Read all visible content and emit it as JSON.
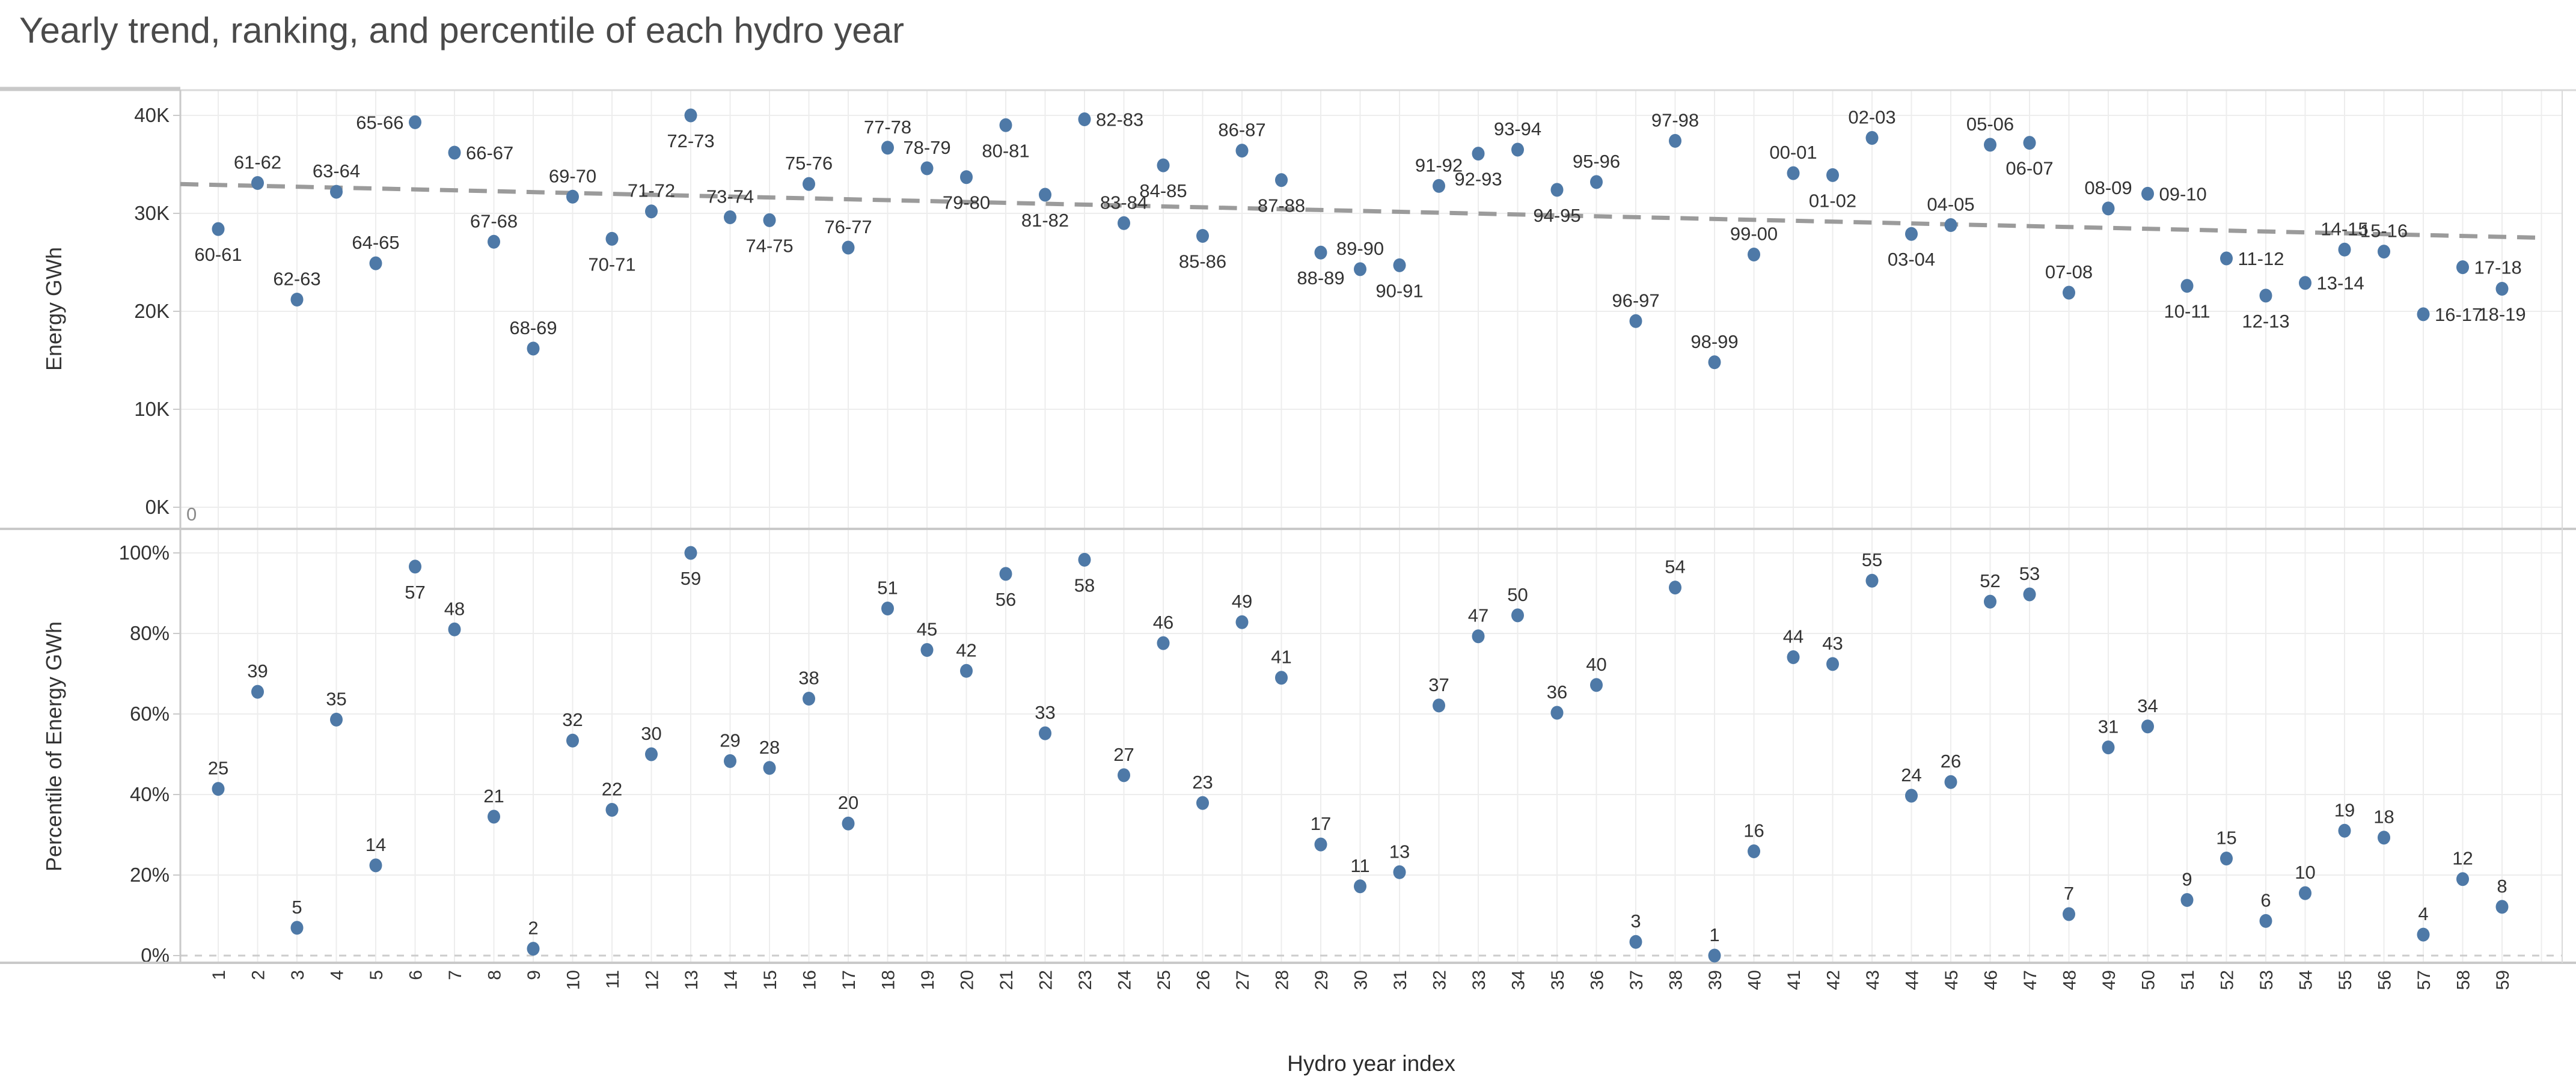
{
  "title": "Yearly trend, ranking, and percentile of each hydro year",
  "xlabel": "Hydro year index",
  "annotations": {
    "origin_zero": "0"
  },
  "colors": {
    "point": "#4e79a7",
    "trend": "#9b9b9b",
    "grid": "#ededed",
    "axis_line": "#c9c9c9",
    "zero_dash": "#cccccc",
    "mark_label": "#333333",
    "title": "#4a4a4a"
  },
  "chart_data": [
    {
      "type": "scatter",
      "panel": "top",
      "ylabel": "Energy GWh",
      "ylim": [
        0,
        42000
      ],
      "yticks": [
        "0K",
        "10K",
        "20K",
        "30K",
        "40K"
      ],
      "ytick_values": [
        0,
        10000,
        20000,
        30000,
        40000
      ],
      "grid": true,
      "x": [
        1,
        2,
        3,
        4,
        5,
        6,
        7,
        8,
        9,
        10,
        11,
        12,
        13,
        14,
        15,
        16,
        17,
        18,
        19,
        20,
        21,
        22,
        23,
        24,
        25,
        26,
        27,
        28,
        29,
        30,
        31,
        32,
        33,
        34,
        35,
        36,
        37,
        38,
        39,
        40,
        41,
        42,
        43,
        44,
        45,
        46,
        47,
        48,
        49,
        50,
        51,
        52,
        53,
        54,
        55,
        56,
        57,
        58,
        59
      ],
      "labels": [
        "60-61",
        "61-62",
        "62-63",
        "63-64",
        "64-65",
        "65-66",
        "66-67",
        "67-68",
        "68-69",
        "69-70",
        "70-71",
        "71-72",
        "72-73",
        "73-74",
        "74-75",
        "75-76",
        "76-77",
        "77-78",
        "78-79",
        "79-80",
        "80-81",
        "81-82",
        "82-83",
        "83-84",
        "84-85",
        "85-86",
        "86-87",
        "87-88",
        "88-89",
        "89-90",
        "90-91",
        "91-92",
        "92-93",
        "93-94",
        "94-95",
        "95-96",
        "96-97",
        "97-98",
        "98-99",
        "99-00",
        "00-01",
        "01-02",
        "02-03",
        "03-04",
        "04-05",
        "05-06",
        "06-07",
        "07-08",
        "08-09",
        "09-10",
        "10-11",
        "11-12",
        "12-13",
        "13-14",
        "14-15",
        "15-16",
        "16-17",
        "17-18",
        "18-19"
      ],
      "values": [
        28400,
        33100,
        21200,
        32200,
        24900,
        39300,
        36200,
        27100,
        16200,
        31700,
        27400,
        30200,
        40000,
        29600,
        29300,
        33000,
        26500,
        36700,
        34600,
        33700,
        39000,
        31900,
        39600,
        29000,
        34900,
        27700,
        36400,
        33400,
        26000,
        24300,
        24700,
        32800,
        36100,
        36500,
        32400,
        33200,
        19000,
        37400,
        14800,
        25800,
        34100,
        33900,
        37700,
        27900,
        28800,
        37000,
        37200,
        21900,
        30500,
        32000,
        22600,
        25400,
        21600,
        22900,
        26300,
        26100,
        19700,
        24500,
        22300
      ],
      "label_side": [
        "below",
        "above",
        "above",
        "above",
        "above",
        "left",
        "right",
        "above",
        "above",
        "above",
        "below",
        "above",
        "below",
        "above",
        "below",
        "above",
        "above",
        "above",
        "above",
        "below",
        "below",
        "below",
        "right",
        "above",
        "below",
        "below",
        "above",
        "below",
        "below",
        "above",
        "below",
        "above",
        "below",
        "above",
        "below",
        "above",
        "above",
        "above",
        "above",
        "above",
        "above",
        "below",
        "above",
        "below",
        "above",
        "above",
        "below",
        "above",
        "above",
        "right",
        "below",
        "right",
        "below",
        "right",
        "above",
        "above",
        "right",
        "right",
        "below"
      ],
      "trend_line": {
        "style": "dashed",
        "x": [
          1,
          59
        ],
        "y": [
          32900,
          27600
        ]
      }
    },
    {
      "type": "scatter",
      "panel": "bottom",
      "ylabel": "Percentile of Energy GWh",
      "ylim": [
        0,
        100
      ],
      "yticks": [
        "0%",
        "20%",
        "40%",
        "60%",
        "80%",
        "100%"
      ],
      "ytick_values": [
        0,
        20,
        40,
        60,
        80,
        100
      ],
      "grid": true,
      "zero_line_dashed": true,
      "x": [
        1,
        2,
        3,
        4,
        5,
        6,
        7,
        8,
        9,
        10,
        11,
        12,
        13,
        14,
        15,
        16,
        17,
        18,
        19,
        20,
        21,
        22,
        23,
        24,
        25,
        26,
        27,
        28,
        29,
        30,
        31,
        32,
        33,
        34,
        35,
        36,
        37,
        38,
        39,
        40,
        41,
        42,
        43,
        44,
        45,
        46,
        47,
        48,
        49,
        50,
        51,
        52,
        53,
        54,
        55,
        56,
        57,
        58,
        59
      ],
      "labels": [
        "25",
        "39",
        "5",
        "35",
        "14",
        "57",
        "48",
        "21",
        "2",
        "32",
        "22",
        "30",
        "59",
        "29",
        "28",
        "38",
        "20",
        "51",
        "45",
        "42",
        "56",
        "33",
        "58",
        "27",
        "46",
        "23",
        "49",
        "41",
        "17",
        "11",
        "13",
        "37",
        "47",
        "50",
        "36",
        "40",
        "3",
        "54",
        "1",
        "16",
        "44",
        "43",
        "55",
        "24",
        "26",
        "52",
        "53",
        "7",
        "31",
        "34",
        "9",
        "15",
        "6",
        "10",
        "19",
        "18",
        "4",
        "12",
        "8"
      ],
      "ranks": [
        25,
        39,
        5,
        35,
        14,
        57,
        48,
        21,
        2,
        32,
        22,
        30,
        59,
        29,
        28,
        38,
        20,
        51,
        45,
        42,
        56,
        33,
        58,
        27,
        46,
        23,
        49,
        41,
        17,
        11,
        13,
        37,
        47,
        50,
        36,
        40,
        3,
        54,
        1,
        16,
        44,
        43,
        55,
        24,
        26,
        52,
        53,
        7,
        31,
        34,
        9,
        15,
        6,
        10,
        19,
        18,
        4,
        12,
        8
      ],
      "values": [
        41.4,
        65.5,
        6.9,
        58.6,
        22.4,
        96.6,
        81.0,
        34.5,
        1.7,
        53.4,
        36.2,
        50.0,
        100.0,
        48.3,
        46.6,
        63.8,
        32.8,
        86.2,
        75.9,
        70.7,
        94.8,
        55.2,
        98.3,
        44.8,
        77.6,
        37.9,
        82.8,
        69.0,
        27.6,
        17.2,
        20.7,
        62.1,
        79.3,
        84.5,
        60.3,
        67.2,
        3.4,
        91.4,
        0.0,
        25.9,
        74.1,
        72.4,
        93.1,
        39.7,
        43.1,
        87.9,
        89.7,
        10.3,
        51.7,
        56.9,
        13.8,
        24.1,
        8.6,
        15.5,
        31.0,
        29.3,
        5.2,
        19.0,
        12.1
      ],
      "label_side": [
        "above",
        "above",
        "above",
        "above",
        "above",
        "below",
        "above",
        "above",
        "above",
        "above",
        "above",
        "above",
        "below",
        "above",
        "above",
        "above",
        "above",
        "above",
        "above",
        "above",
        "below",
        "above",
        "below",
        "above",
        "above",
        "above",
        "above",
        "above",
        "above",
        "above",
        "above",
        "above",
        "above",
        "above",
        "above",
        "above",
        "above",
        "above",
        "above",
        "above",
        "above",
        "above",
        "above",
        "above",
        "above",
        "above",
        "above",
        "above",
        "above",
        "above",
        "above",
        "above",
        "above",
        "above",
        "above",
        "above",
        "above",
        "above",
        "above"
      ]
    }
  ]
}
